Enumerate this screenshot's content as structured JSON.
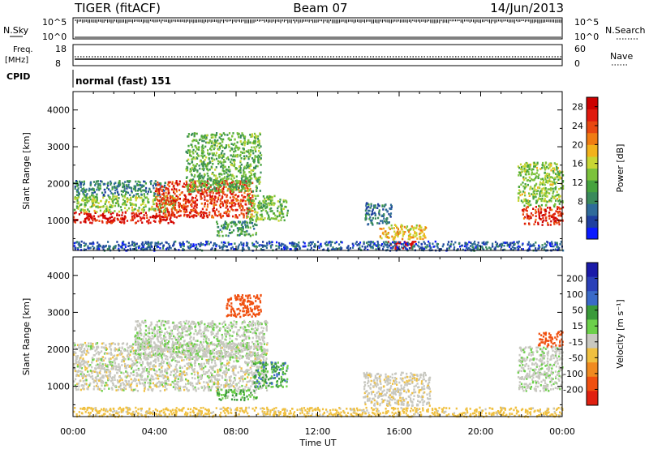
{
  "header": {
    "station": "TIGER (fitACF)",
    "beam": "Beam 07",
    "date": "14/Jun/2013"
  },
  "strip_panels": {
    "nsky": {
      "label": "N.Sky",
      "ticks": [
        "10^5",
        "10^0"
      ]
    },
    "nsearch": {
      "label": "N.Search",
      "ticks": [
        "10^5",
        "10^0"
      ]
    },
    "freq": {
      "label_line1": "Freq.",
      "label_line2": "[MHz]",
      "ticks": [
        "18",
        "8"
      ]
    },
    "nave": {
      "label": "Nave",
      "ticks": [
        "60",
        "0"
      ]
    },
    "cpid": {
      "label": "CPID",
      "value": "normal (fast) 151"
    }
  },
  "chart_data": [
    {
      "type": "heatmap",
      "title": "",
      "xlabel": "Time UT",
      "ylabel": "Slant Range [km]",
      "x_ticks": [
        "00:00",
        "04:00",
        "08:00",
        "12:00",
        "16:00",
        "20:00",
        "00:00"
      ],
      "xlim_hours": [
        0,
        24
      ],
      "y_ticks": [
        1000,
        2000,
        3000,
        4000
      ],
      "ylim_km": [
        180,
        4500
      ],
      "colorbar": {
        "label": "Power [dB]",
        "ticks": [
          4,
          8,
          12,
          16,
          20,
          24,
          28
        ],
        "range": [
          0,
          30
        ],
        "colors": [
          "#0a1aff",
          "#1e3fa0",
          "#2f6b9a",
          "#3a8a5c",
          "#46a33e",
          "#7cc23c",
          "#c8d634",
          "#f2b21c",
          "#f07c12",
          "#e84810",
          "#e01a0e",
          "#cc0000"
        ]
      },
      "regions": [
        {
          "t0": 0.0,
          "t1": 5.0,
          "r0": 950,
          "r1": 1250,
          "value": 27
        },
        {
          "t0": 0.0,
          "t1": 5.0,
          "r0": 1250,
          "r1": 1700,
          "value": 14
        },
        {
          "t0": 0.0,
          "t1": 4.5,
          "r0": 1700,
          "r1": 2100,
          "value": 8
        },
        {
          "t0": 4.0,
          "t1": 8.8,
          "r0": 1100,
          "r1": 2100,
          "value": 25
        },
        {
          "t0": 5.5,
          "t1": 9.2,
          "r0": 1800,
          "r1": 3400,
          "value": 12
        },
        {
          "t0": 8.5,
          "t1": 10.5,
          "r0": 1000,
          "r1": 1700,
          "value": 13
        },
        {
          "t0": 7.0,
          "t1": 9.0,
          "r0": 600,
          "r1": 1000,
          "value": 10
        },
        {
          "t0": 14.3,
          "t1": 15.6,
          "r0": 900,
          "r1": 1500,
          "value": 7
        },
        {
          "t0": 15.0,
          "t1": 17.3,
          "r0": 500,
          "r1": 900,
          "value": 18
        },
        {
          "t0": 15.3,
          "t1": 16.8,
          "r0": 250,
          "r1": 450,
          "value": 29
        },
        {
          "t0": 22.0,
          "t1": 24.0,
          "r0": 900,
          "r1": 1400,
          "value": 26
        },
        {
          "t0": 21.8,
          "t1": 24.0,
          "r0": 1400,
          "r1": 2600,
          "value": 14
        },
        {
          "t0": 0.0,
          "t1": 24.0,
          "r0": 200,
          "r1": 450,
          "value": 5
        }
      ]
    },
    {
      "type": "heatmap",
      "title": "",
      "xlabel": "Time UT",
      "ylabel": "Slant Range [km]",
      "x_ticks": [
        "00:00",
        "04:00",
        "08:00",
        "12:00",
        "16:00",
        "20:00",
        "00:00"
      ],
      "xlim_hours": [
        0,
        24
      ],
      "y_ticks": [
        1000,
        2000,
        3000,
        4000
      ],
      "ylim_km": [
        180,
        4500
      ],
      "colorbar": {
        "label": "Velocity [m s⁻¹]",
        "ticks": [
          200,
          100,
          50,
          15,
          -15,
          -50,
          -100,
          -200
        ],
        "colors": [
          "#1a1aa8",
          "#2a40b8",
          "#3a6ac8",
          "#3a9a3a",
          "#6cd04a",
          "#c8c8c0",
          "#f0c040",
          "#f08a20",
          "#f05010",
          "#e02010"
        ]
      },
      "regions": [
        {
          "t0": 0.0,
          "t1": 9.5,
          "r0": 900,
          "r1": 2200,
          "value": 0
        },
        {
          "t0": 3.0,
          "t1": 9.5,
          "r0": 1800,
          "r1": 2800,
          "value": 5
        },
        {
          "t0": 7.5,
          "t1": 9.2,
          "r0": 2900,
          "r1": 3500,
          "value": -150
        },
        {
          "t0": 8.8,
          "t1": 10.5,
          "r0": 1000,
          "r1": 1700,
          "value": 40
        },
        {
          "t0": 7.0,
          "t1": 9.0,
          "r0": 650,
          "r1": 950,
          "value": 25
        },
        {
          "t0": 14.2,
          "t1": 17.5,
          "r0": 500,
          "r1": 1400,
          "value": -5
        },
        {
          "t0": 21.8,
          "t1": 24.0,
          "r0": 900,
          "r1": 2100,
          "value": 5
        },
        {
          "t0": 22.8,
          "t1": 24.0,
          "r0": 2100,
          "r1": 2500,
          "value": -180
        },
        {
          "t0": 0.0,
          "t1": 24.0,
          "r0": 200,
          "r1": 450,
          "value": -30
        }
      ]
    }
  ]
}
